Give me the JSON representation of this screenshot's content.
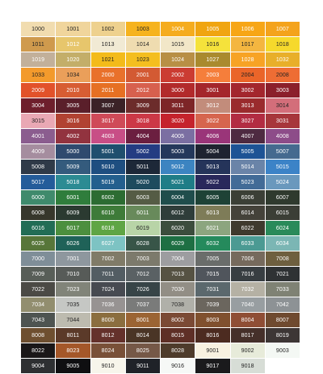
{
  "swatches": [
    [
      {
        "code": "1000",
        "color": "#f1dcaf",
        "text": "#222222"
      },
      {
        "code": "1001",
        "color": "#f0d59c",
        "text": "#222222"
      },
      {
        "code": "1002",
        "color": "#eed18e",
        "text": "#222222"
      },
      {
        "code": "1003",
        "color": "#f6b31e",
        "text": "#222222"
      },
      {
        "code": "1004",
        "color": "#f5ac1e",
        "text": "#ffffff"
      },
      {
        "code": "1005",
        "color": "#f0a511",
        "text": "#ffffff"
      },
      {
        "code": "1006",
        "color": "#f7a616",
        "text": "#ffffff"
      },
      {
        "code": "1007",
        "color": "#f4a31c",
        "text": "#ffffff"
      }
    ],
    [
      {
        "code": "1011",
        "color": "#cf9a4d",
        "text": "#222222"
      },
      {
        "code": "1012",
        "color": "#e7c66c",
        "text": "#ffffff"
      },
      {
        "code": "1013",
        "color": "#f1ead4",
        "text": "#222222"
      },
      {
        "code": "1014",
        "color": "#efdcb0",
        "text": "#222222"
      },
      {
        "code": "1015",
        "color": "#f2e7c8",
        "text": "#222222"
      },
      {
        "code": "1016",
        "color": "#f5e23b",
        "text": "#222222"
      },
      {
        "code": "1017",
        "color": "#f4b640",
        "text": "#222222"
      },
      {
        "code": "1018",
        "color": "#f6d92c",
        "text": "#222222"
      }
    ],
    [
      {
        "code": "1019",
        "color": "#c2b09a",
        "text": "#ffffff"
      },
      {
        "code": "1020",
        "color": "#c3ae69",
        "text": "#ffffff"
      },
      {
        "code": "1021",
        "color": "#f3bb1a",
        "text": "#222222"
      },
      {
        "code": "1023",
        "color": "#f4be1f",
        "text": "#222222"
      },
      {
        "code": "1024",
        "color": "#b88f45",
        "text": "#ffffff"
      },
      {
        "code": "1027",
        "color": "#a98a2e",
        "text": "#ffffff"
      },
      {
        "code": "1028",
        "color": "#f7a325",
        "text": "#ffffff"
      },
      {
        "code": "1032",
        "color": "#e8af2a",
        "text": "#ffffff"
      }
    ],
    [
      {
        "code": "1033",
        "color": "#f39a2c",
        "text": "#222222"
      },
      {
        "code": "1034",
        "color": "#ea9f5a",
        "text": "#222222"
      },
      {
        "code": "2000",
        "color": "#e9712b",
        "text": "#ffffff"
      },
      {
        "code": "2001",
        "color": "#d35a33",
        "text": "#ffffff"
      },
      {
        "code": "2002",
        "color": "#cb3c32",
        "text": "#ffffff"
      },
      {
        "code": "2003",
        "color": "#f57e3b",
        "text": "#ffffff"
      },
      {
        "code": "2004",
        "color": "#ea6529",
        "text": "#222222"
      },
      {
        "code": "2008",
        "color": "#ee6d34",
        "text": "#222222"
      }
    ],
    [
      {
        "code": "2009",
        "color": "#e2522a",
        "text": "#ffffff"
      },
      {
        "code": "2010",
        "color": "#d75d33",
        "text": "#ffffff"
      },
      {
        "code": "2011",
        "color": "#e67023",
        "text": "#ffffff"
      },
      {
        "code": "2012",
        "color": "#d7604e",
        "text": "#ffffff"
      },
      {
        "code": "3000",
        "color": "#b22a2b",
        "text": "#ffffff"
      },
      {
        "code": "3001",
        "color": "#a4262b",
        "text": "#ffffff"
      },
      {
        "code": "3002",
        "color": "#a3262d",
        "text": "#ffffff"
      },
      {
        "code": "3003",
        "color": "#8b1f2b",
        "text": "#ffffff"
      }
    ],
    [
      {
        "code": "3004",
        "color": "#6e1f2c",
        "text": "#ffffff"
      },
      {
        "code": "3005",
        "color": "#5a1f2a",
        "text": "#ffffff"
      },
      {
        "code": "3007",
        "color": "#3b2227",
        "text": "#ffffff"
      },
      {
        "code": "3009",
        "color": "#6c2c2b",
        "text": "#ffffff"
      },
      {
        "code": "3011",
        "color": "#7d2527",
        "text": "#ffffff"
      },
      {
        "code": "3012",
        "color": "#c28c7b",
        "text": "#ffffff"
      },
      {
        "code": "3013",
        "color": "#9a2b2d",
        "text": "#ffffff"
      },
      {
        "code": "3014",
        "color": "#d36e7a",
        "text": "#222222"
      }
    ],
    [
      {
        "code": "3015",
        "color": "#e9a8b4",
        "text": "#222222"
      },
      {
        "code": "3016",
        "color": "#b14232",
        "text": "#ffffff"
      },
      {
        "code": "3017",
        "color": "#cf4a58",
        "text": "#ffffff"
      },
      {
        "code": "3018",
        "color": "#cc3846",
        "text": "#ffffff"
      },
      {
        "code": "3020",
        "color": "#c5232c",
        "text": "#ffffff"
      },
      {
        "code": "3022",
        "color": "#d6654e",
        "text": "#ffffff"
      },
      {
        "code": "3027",
        "color": "#b22c42",
        "text": "#ffffff"
      },
      {
        "code": "3031",
        "color": "#a7363b",
        "text": "#ffffff"
      }
    ],
    [
      {
        "code": "4001",
        "color": "#8b5d8f",
        "text": "#ffffff"
      },
      {
        "code": "4002",
        "color": "#92333f",
        "text": "#ffffff"
      },
      {
        "code": "4003",
        "color": "#c84e86",
        "text": "#ffffff"
      },
      {
        "code": "4004",
        "color": "#6b1f40",
        "text": "#ffffff"
      },
      {
        "code": "4005",
        "color": "#7b6fa2",
        "text": "#ffffff"
      },
      {
        "code": "4006",
        "color": "#9a3579",
        "text": "#ffffff"
      },
      {
        "code": "4007",
        "color": "#4e2a41",
        "text": "#ffffff"
      },
      {
        "code": "4008",
        "color": "#8d4c89",
        "text": "#ffffff"
      }
    ],
    [
      {
        "code": "4009",
        "color": "#a58d9f",
        "text": "#ffffff"
      },
      {
        "code": "5000",
        "color": "#2f4a6e",
        "text": "#ffffff"
      },
      {
        "code": "5001",
        "color": "#1f4f6e",
        "text": "#ffffff"
      },
      {
        "code": "5002",
        "color": "#243c82",
        "text": "#ffffff"
      },
      {
        "code": "5003",
        "color": "#24385b",
        "text": "#ffffff"
      },
      {
        "code": "5004",
        "color": "#1e2330",
        "text": "#ffffff"
      },
      {
        "code": "5005",
        "color": "#1d5395",
        "text": "#ffffff"
      },
      {
        "code": "5007",
        "color": "#456a8f",
        "text": "#ffffff"
      }
    ],
    [
      {
        "code": "5008",
        "color": "#2f3a48",
        "text": "#ffffff"
      },
      {
        "code": "5009",
        "color": "#345b7d",
        "text": "#ffffff"
      },
      {
        "code": "5010",
        "color": "#1e4e80",
        "text": "#ffffff"
      },
      {
        "code": "5011",
        "color": "#1d2838",
        "text": "#ffffff"
      },
      {
        "code": "5012",
        "color": "#3c84c1",
        "text": "#ffffff"
      },
      {
        "code": "5013",
        "color": "#25345a",
        "text": "#ffffff"
      },
      {
        "code": "5014",
        "color": "#6a84a8",
        "text": "#ffffff"
      },
      {
        "code": "5015",
        "color": "#3c83c7",
        "text": "#ffffff"
      }
    ],
    [
      {
        "code": "5017",
        "color": "#245c9a",
        "text": "#ffffff"
      },
      {
        "code": "5018",
        "color": "#2c8b93",
        "text": "#ffffff"
      },
      {
        "code": "5019",
        "color": "#235f8e",
        "text": "#ffffff"
      },
      {
        "code": "5020",
        "color": "#1e4b5e",
        "text": "#ffffff"
      },
      {
        "code": "5021",
        "color": "#1f7d87",
        "text": "#ffffff"
      },
      {
        "code": "5022",
        "color": "#29285b",
        "text": "#ffffff"
      },
      {
        "code": "5023",
        "color": "#426b97",
        "text": "#ffffff"
      },
      {
        "code": "5024",
        "color": "#6a98bd",
        "text": "#ffffff"
      }
    ],
    [
      {
        "code": "6000",
        "color": "#3f8a6c",
        "text": "#ffffff"
      },
      {
        "code": "6001",
        "color": "#2f7d3c",
        "text": "#ffffff"
      },
      {
        "code": "6002",
        "color": "#2c6c32",
        "text": "#ffffff"
      },
      {
        "code": "6003",
        "color": "#555c45",
        "text": "#ffffff"
      },
      {
        "code": "6004",
        "color": "#1f4d4c",
        "text": "#ffffff"
      },
      {
        "code": "6005",
        "color": "#1e4236",
        "text": "#ffffff"
      },
      {
        "code": "6006",
        "color": "#3b3f36",
        "text": "#ffffff"
      },
      {
        "code": "6007",
        "color": "#2f3a2e",
        "text": "#ffffff"
      }
    ],
    [
      {
        "code": "6008",
        "color": "#37372c",
        "text": "#ffffff"
      },
      {
        "code": "6009",
        "color": "#2b3a31",
        "text": "#ffffff"
      },
      {
        "code": "6010",
        "color": "#3e7b39",
        "text": "#ffffff"
      },
      {
        "code": "6011",
        "color": "#688a5b",
        "text": "#ffffff"
      },
      {
        "code": "6012",
        "color": "#2f3d3a",
        "text": "#ffffff"
      },
      {
        "code": "6013",
        "color": "#7e7c58",
        "text": "#ffffff"
      },
      {
        "code": "6014",
        "color": "#44423a",
        "text": "#ffffff"
      },
      {
        "code": "6015",
        "color": "#3b3e36",
        "text": "#ffffff"
      }
    ],
    [
      {
        "code": "6016",
        "color": "#226d55",
        "text": "#ffffff"
      },
      {
        "code": "6017",
        "color": "#4c8f3e",
        "text": "#ffffff"
      },
      {
        "code": "6018",
        "color": "#5fa544",
        "text": "#ffffff"
      },
      {
        "code": "6019",
        "color": "#b8d4a7",
        "text": "#222222"
      },
      {
        "code": "6020",
        "color": "#3c4d3d",
        "text": "#ffffff"
      },
      {
        "code": "6021",
        "color": "#8ca57f",
        "text": "#ffffff"
      },
      {
        "code": "6022",
        "color": "#3f3a2e",
        "text": "#ffffff"
      },
      {
        "code": "6024",
        "color": "#2a8a5a",
        "text": "#ffffff"
      }
    ],
    [
      {
        "code": "6025",
        "color": "#577639",
        "text": "#ffffff"
      },
      {
        "code": "6026",
        "color": "#1f6258",
        "text": "#ffffff"
      },
      {
        "code": "6027",
        "color": "#7dc3c3",
        "text": "#ffffff"
      },
      {
        "code": "6028",
        "color": "#385548",
        "text": "#ffffff"
      },
      {
        "code": "6029",
        "color": "#1e6f43",
        "text": "#ffffff"
      },
      {
        "code": "6032",
        "color": "#258a5c",
        "text": "#ffffff"
      },
      {
        "code": "6033",
        "color": "#4b9a93",
        "text": "#ffffff"
      },
      {
        "code": "6034",
        "color": "#7bb6b4",
        "text": "#ffffff"
      }
    ],
    [
      {
        "code": "7000",
        "color": "#7f8e98",
        "text": "#ffffff"
      },
      {
        "code": "7001",
        "color": "#8e979e",
        "text": "#ffffff"
      },
      {
        "code": "7002",
        "color": "#807b68",
        "text": "#ffffff"
      },
      {
        "code": "7003",
        "color": "#7c7a6c",
        "text": "#ffffff"
      },
      {
        "code": "7004",
        "color": "#9d9da0",
        "text": "#ffffff"
      },
      {
        "code": "7005",
        "color": "#6a6d6b",
        "text": "#ffffff"
      },
      {
        "code": "7006",
        "color": "#766a5d",
        "text": "#ffffff"
      },
      {
        "code": "7008",
        "color": "#6e5f3f",
        "text": "#ffffff"
      }
    ],
    [
      {
        "code": "7009",
        "color": "#585e58",
        "text": "#ffffff"
      },
      {
        "code": "7010",
        "color": "#575b58",
        "text": "#ffffff"
      },
      {
        "code": "7011",
        "color": "#535d63",
        "text": "#ffffff"
      },
      {
        "code": "7012",
        "color": "#5a6164",
        "text": "#ffffff"
      },
      {
        "code": "7013",
        "color": "#565243",
        "text": "#ffffff"
      },
      {
        "code": "7015",
        "color": "#50555c",
        "text": "#ffffff"
      },
      {
        "code": "7016",
        "color": "#383e42",
        "text": "#ffffff"
      },
      {
        "code": "7021",
        "color": "#2f3234",
        "text": "#ffffff"
      }
    ],
    [
      {
        "code": "7022",
        "color": "#4b4a45",
        "text": "#ffffff"
      },
      {
        "code": "7023",
        "color": "#818479",
        "text": "#ffffff"
      },
      {
        "code": "7024",
        "color": "#474a51",
        "text": "#ffffff"
      },
      {
        "code": "7026",
        "color": "#374447",
        "text": "#ffffff"
      },
      {
        "code": "7030",
        "color": "#928e85",
        "text": "#ffffff"
      },
      {
        "code": "7031",
        "color": "#5b686d",
        "text": "#ffffff"
      },
      {
        "code": "7032",
        "color": "#b5b1a4",
        "text": "#ffffff"
      },
      {
        "code": "7033",
        "color": "#7f8274",
        "text": "#ffffff"
      }
    ],
    [
      {
        "code": "7034",
        "color": "#928e6f",
        "text": "#ffffff"
      },
      {
        "code": "7035",
        "color": "#c5c7c4",
        "text": "#222222"
      },
      {
        "code": "7036",
        "color": "#979392",
        "text": "#ffffff"
      },
      {
        "code": "7037",
        "color": "#7a7b7a",
        "text": "#ffffff"
      },
      {
        "code": "7038",
        "color": "#b0b0a9",
        "text": "#222222"
      },
      {
        "code": "7039",
        "color": "#6b665e",
        "text": "#ffffff"
      },
      {
        "code": "7040",
        "color": "#989ea1",
        "text": "#ffffff"
      },
      {
        "code": "7042",
        "color": "#8d9295",
        "text": "#ffffff"
      }
    ],
    [
      {
        "code": "7043",
        "color": "#4e5451",
        "text": "#ffffff"
      },
      {
        "code": "7044",
        "color": "#bdbbaf",
        "text": "#222222"
      },
      {
        "code": "8000",
        "color": "#8b6e3f",
        "text": "#ffffff"
      },
      {
        "code": "8001",
        "color": "#9b6433",
        "text": "#ffffff"
      },
      {
        "code": "8002",
        "color": "#7b4a35",
        "text": "#ffffff"
      },
      {
        "code": "8003",
        "color": "#80502e",
        "text": "#ffffff"
      },
      {
        "code": "8004",
        "color": "#8f4e35",
        "text": "#ffffff"
      },
      {
        "code": "8007",
        "color": "#6f4a2f",
        "text": "#ffffff"
      }
    ],
    [
      {
        "code": "8008",
        "color": "#6e4f30",
        "text": "#ffffff"
      },
      {
        "code": "8011",
        "color": "#5b3a29",
        "text": "#ffffff"
      },
      {
        "code": "8012",
        "color": "#64312b",
        "text": "#ffffff"
      },
      {
        "code": "8014",
        "color": "#4a3526",
        "text": "#ffffff"
      },
      {
        "code": "8015",
        "color": "#5e2f26",
        "text": "#ffffff"
      },
      {
        "code": "8016",
        "color": "#4c2b20",
        "text": "#ffffff"
      },
      {
        "code": "8017",
        "color": "#45302a",
        "text": "#ffffff"
      },
      {
        "code": "8019",
        "color": "#3d3635",
        "text": "#ffffff"
      }
    ],
    [
      {
        "code": "8022",
        "color": "#1a1718",
        "text": "#ffffff"
      },
      {
        "code": "8023",
        "color": "#a45729",
        "text": "#ffffff"
      },
      {
        "code": "8024",
        "color": "#795038",
        "text": "#ffffff"
      },
      {
        "code": "8025",
        "color": "#755847",
        "text": "#ffffff"
      },
      {
        "code": "8028",
        "color": "#4e3b2b",
        "text": "#ffffff"
      },
      {
        "code": "9001",
        "color": "#f8f2e1",
        "text": "#222222"
      },
      {
        "code": "9002",
        "color": "#e7ebda",
        "text": "#222222"
      },
      {
        "code": "9003",
        "color": "#f4f8f4",
        "text": "#222222"
      }
    ],
    [
      {
        "code": "9004",
        "color": "#2e3032",
        "text": "#ffffff"
      },
      {
        "code": "9005",
        "color": "#0f0f11",
        "text": "#ffffff"
      },
      {
        "code": "9010",
        "color": "#f7f5eb",
        "text": "#222222"
      },
      {
        "code": "9011",
        "color": "#1f2228",
        "text": "#ffffff"
      },
      {
        "code": "9016",
        "color": "#f6f8f6",
        "text": "#222222"
      },
      {
        "code": "9017",
        "color": "#1a1a1c",
        "text": "#ffffff"
      },
      {
        "code": "9018",
        "color": "#d7ddd6",
        "text": "#222222"
      },
      {
        "code": "",
        "color": "#ffffff",
        "text": "#222222"
      }
    ]
  ]
}
